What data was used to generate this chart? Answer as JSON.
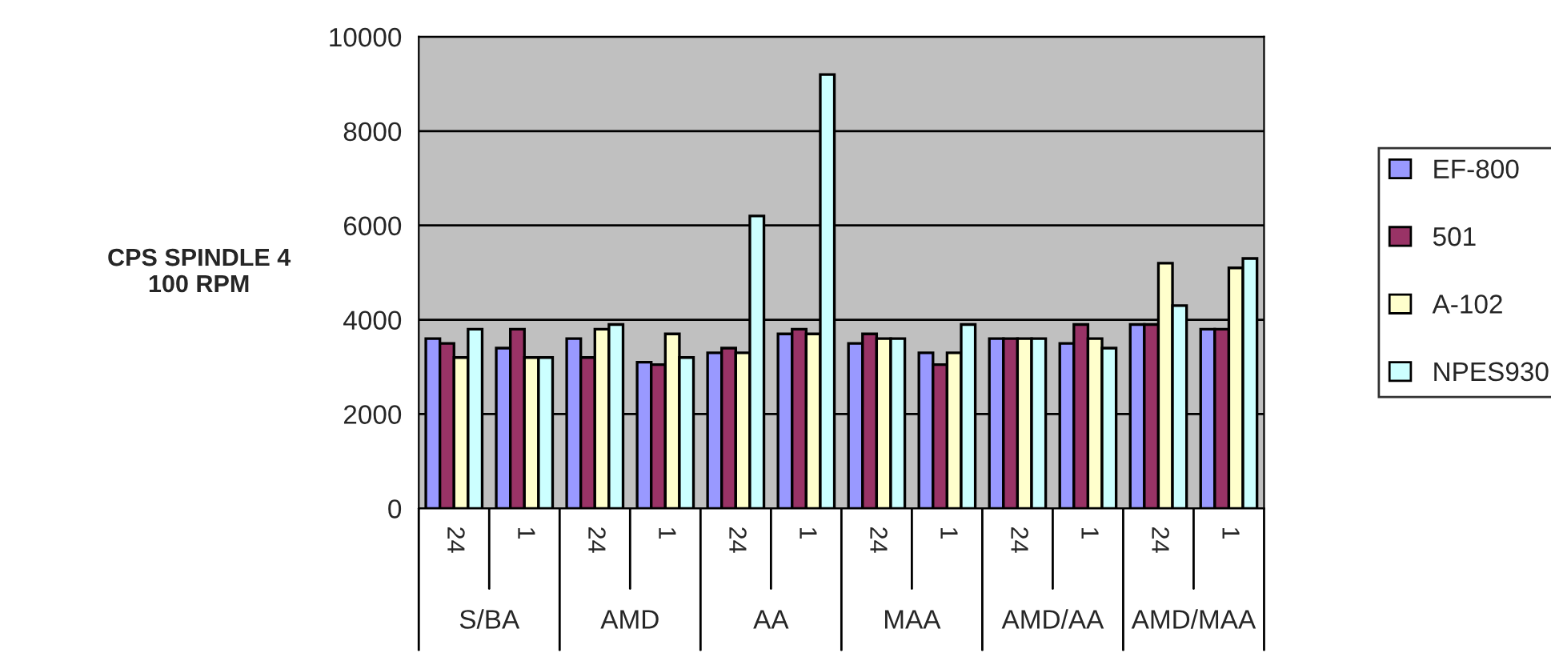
{
  "chart_data": {
    "type": "bar",
    "ylabel": "CPS SPINDLE 4\n100 RPM",
    "categories": [
      "24",
      "1",
      "24",
      "1",
      "24",
      "1",
      "24",
      "1",
      "24",
      "1",
      "24",
      "1"
    ],
    "annotations": [
      "S/BA",
      "AMD",
      "AA",
      "MAA",
      "AMD/AA",
      "AMD/MAA"
    ],
    "series": [
      {
        "name": "EF-800",
        "color": "#9999ff",
        "values": [
          3600,
          3400,
          3600,
          3100,
          3300,
          3700,
          3500,
          3300,
          3600,
          3500,
          3900,
          3800
        ]
      },
      {
        "name": "501",
        "color": "#993366",
        "values": [
          3500,
          3800,
          3200,
          3050,
          3400,
          3800,
          3700,
          3050,
          3600,
          3900,
          3900,
          3800
        ]
      },
      {
        "name": "A-102",
        "color": "#ffffcc",
        "values": [
          3200,
          3200,
          3800,
          3700,
          3300,
          3700,
          3600,
          3300,
          3600,
          3600,
          5200,
          5100
        ]
      },
      {
        "name": "NPES930",
        "color": "#ccffff",
        "values": [
          3800,
          3200,
          3900,
          3200,
          6200,
          9200,
          3600,
          3900,
          3600,
          3400,
          4300,
          5300
        ]
      }
    ],
    "ylim": [
      0,
      10000
    ],
    "yticks": [
      0,
      2000,
      4000,
      6000,
      8000,
      10000
    ],
    "grid": "y",
    "legend": "right"
  }
}
